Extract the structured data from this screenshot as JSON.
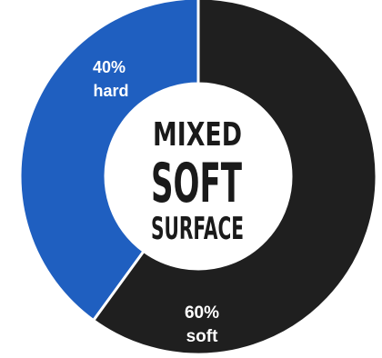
{
  "chart_data": {
    "type": "pie",
    "categories": [
      "hard",
      "soft"
    ],
    "values": [
      40,
      60
    ],
    "colors": [
      "#1f5fc0",
      "#1f1f1f"
    ],
    "labels": [
      {
        "percent": "40%",
        "name": "hard"
      },
      {
        "percent": "60%",
        "name": "soft"
      }
    ],
    "center_lines": [
      "MIXED",
      "SOFT",
      "SURFACE"
    ],
    "style": "donut"
  }
}
